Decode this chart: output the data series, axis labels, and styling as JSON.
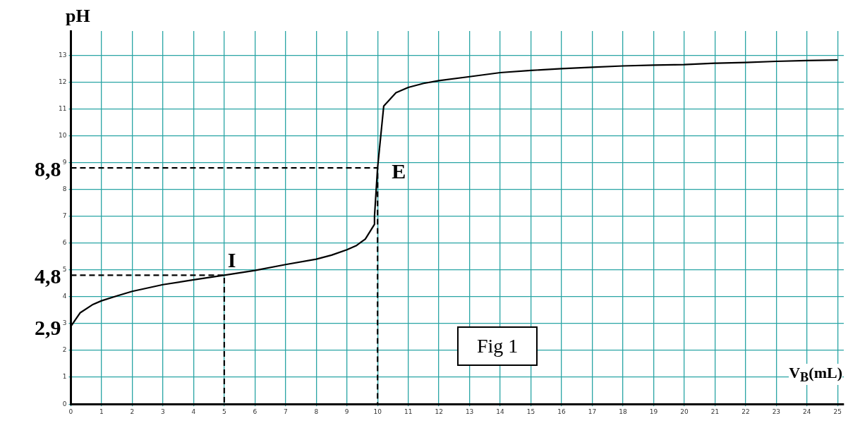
{
  "chart_data": {
    "type": "line",
    "xlabel": "V$_{B}$(mL)",
    "ylabel": "pH",
    "xlim": [
      0,
      25.2
    ],
    "ylim": [
      0,
      13.9
    ],
    "xticks": [
      0,
      1,
      2,
      3,
      4,
      5,
      6,
      7,
      8,
      9,
      10,
      11,
      12,
      13,
      14,
      15,
      16,
      17,
      18,
      19,
      20,
      21,
      22,
      23,
      24,
      25
    ],
    "yticks": [
      0,
      1,
      2,
      3,
      4,
      5,
      6,
      7,
      8,
      9,
      10,
      11,
      12,
      13
    ],
    "grid": true,
    "legend": false,
    "marker": "none",
    "series": [
      {
        "color": "#000000",
        "line_style": "solid",
        "x": [
          0,
          0.3,
          0.7,
          1,
          1.5,
          2,
          3,
          4,
          5,
          6,
          7,
          8,
          8.5,
          9,
          9.3,
          9.6,
          9.9,
          9.9,
          10,
          10.2,
          10.6,
          11,
          11.5,
          12,
          13,
          14,
          15,
          16,
          17,
          18,
          19,
          20,
          21,
          22,
          23,
          24,
          25
        ],
        "values": [
          2.9,
          3.4,
          3.7,
          3.85,
          4.03,
          4.2,
          4.45,
          4.63,
          4.8,
          4.98,
          5.2,
          5.4,
          5.55,
          5.75,
          5.9,
          6.15,
          6.7,
          7,
          8.8,
          11.1,
          11.6,
          11.8,
          11.95,
          12.05,
          12.2,
          12.35,
          12.43,
          12.5,
          12.55,
          12.6,
          12.63,
          12.65,
          12.7,
          12.73,
          12.77,
          12.8,
          12.82
        ]
      },
      {
        "color": "#000000",
        "line_style": "dashed",
        "x": [
          0,
          5,
          5
        ],
        "values": [
          4.8,
          4.8,
          0
        ]
      },
      {
        "color": "#000000",
        "line_style": "dashed",
        "x": [
          0,
          10,
          10
        ],
        "values": [
          8.8,
          8.8,
          0
        ]
      }
    ],
    "annotations": [
      {
        "text": "I",
        "x": 5,
        "y": 4.8
      },
      {
        "text": "E",
        "x": 10,
        "y": 8.8
      },
      {
        "text": "8,8",
        "x": 0,
        "y": 8.8
      },
      {
        "text": "4,8",
        "x": 0,
        "y": 4.8
      },
      {
        "text": "2,9",
        "x": 0,
        "y": 2.9
      },
      "Fig 1"
    ]
  }
}
